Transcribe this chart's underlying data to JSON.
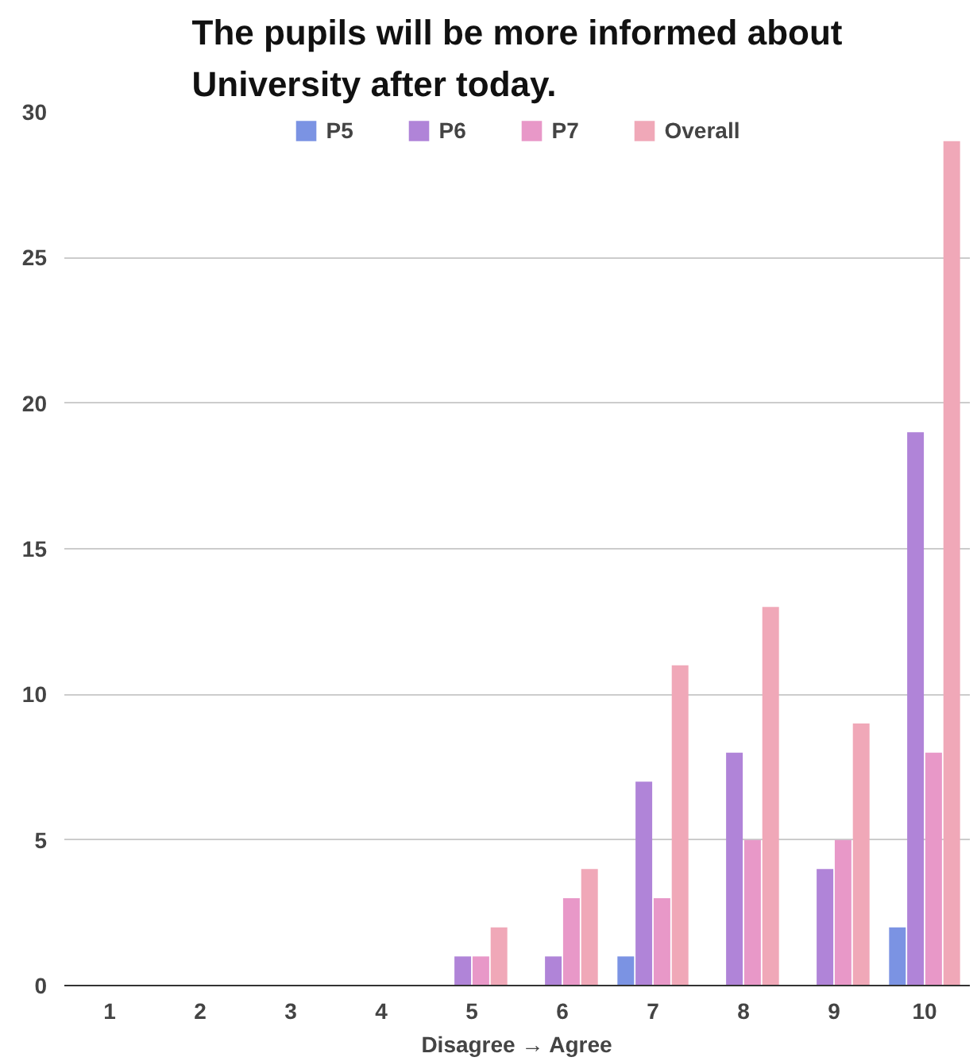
{
  "chart_data": {
    "type": "bar",
    "title": "The pupils will be more informed about University after today.",
    "xlabel": "Disagree → Agree",
    "categories": [
      "1",
      "2",
      "3",
      "4",
      "5",
      "6",
      "7",
      "8",
      "9",
      "10"
    ],
    "series": [
      {
        "name": "P5",
        "color": "#7b93e3",
        "values": [
          0,
          0,
          0,
          0,
          0,
          0,
          1,
          0,
          0,
          2
        ]
      },
      {
        "name": "P6",
        "color": "#b084d8",
        "values": [
          0,
          0,
          0,
          0,
          1,
          1,
          7,
          8,
          4,
          19
        ]
      },
      {
        "name": "P7",
        "color": "#e898c8",
        "values": [
          0,
          0,
          0,
          0,
          1,
          3,
          3,
          5,
          5,
          8
        ]
      },
      {
        "name": "Overall",
        "color": "#f0a8b8",
        "values": [
          0,
          0,
          0,
          0,
          2,
          4,
          11,
          13,
          9,
          29
        ]
      }
    ],
    "ylim": [
      0,
      30
    ],
    "yticks": [
      0,
      5,
      10,
      15,
      20,
      25,
      30
    ],
    "grid": "y",
    "legend": "top"
  }
}
